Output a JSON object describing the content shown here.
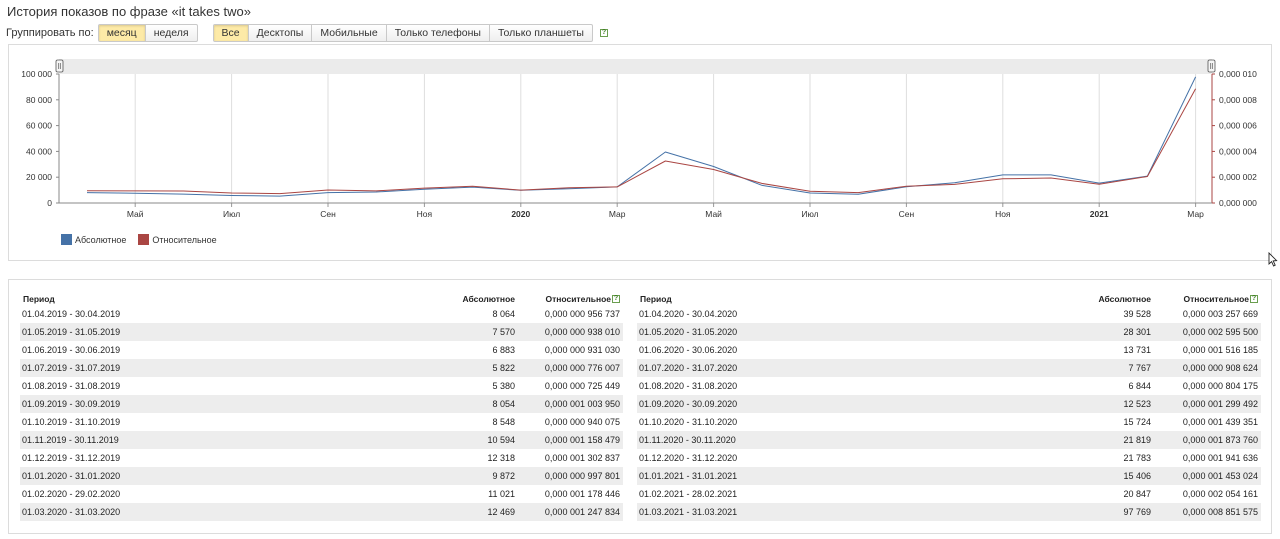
{
  "page": {
    "title": "История показов по фразе «it takes two»"
  },
  "controls": {
    "group_label": "Группировать по:",
    "group_options": [
      {
        "label": "месяц",
        "active": true
      },
      {
        "label": "неделя",
        "active": false
      }
    ],
    "device_options": [
      {
        "label": "Все",
        "active": true
      },
      {
        "label": "Десктопы",
        "active": false
      },
      {
        "label": "Мобильные",
        "active": false
      },
      {
        "label": "Только телефоны",
        "active": false
      },
      {
        "label": "Только планшеты",
        "active": false
      }
    ],
    "help_glyph": "?"
  },
  "chart_data": {
    "type": "line",
    "x": [
      "2019-04",
      "2019-05",
      "2019-06",
      "2019-07",
      "2019-08",
      "2019-09",
      "2019-10",
      "2019-11",
      "2019-12",
      "2020-01",
      "2020-02",
      "2020-03",
      "2020-04",
      "2020-05",
      "2020-06",
      "2020-07",
      "2020-08",
      "2020-09",
      "2020-10",
      "2020-11",
      "2020-12",
      "2021-01",
      "2021-02",
      "2021-03"
    ],
    "x_tick_labels": [
      "Май",
      "Июл",
      "Сен",
      "Ноя",
      "2020",
      "Мар",
      "Май",
      "Июл",
      "Сен",
      "Ноя",
      "2021",
      "Мар"
    ],
    "x_tick_bold": [
      false,
      false,
      false,
      false,
      true,
      false,
      false,
      false,
      false,
      false,
      true,
      false
    ],
    "y_left_ticks": [
      "0",
      "20 000",
      "40 000",
      "60 000",
      "80 000",
      "100 000"
    ],
    "y_right_ticks": [
      "0,000 000",
      "0,000 002",
      "0,000 004",
      "0,000 006",
      "0,000 008",
      "0,000 010"
    ],
    "y_left_range": [
      0,
      100000
    ],
    "y_right_range": [
      0,
      1e-05
    ],
    "series": [
      {
        "name": "Абсолютное",
        "color": "#4572a7",
        "axis": "left",
        "values": [
          8064,
          7570,
          6883,
          5822,
          5380,
          8054,
          8548,
          10594,
          12318,
          9872,
          11021,
          12469,
          39528,
          28301,
          13731,
          7767,
          6844,
          12523,
          15724,
          21819,
          21783,
          15406,
          20847,
          97769
        ]
      },
      {
        "name": "Относительное",
        "color": "#aa4643",
        "axis": "right",
        "values": [
          9.56737e-07,
          9.3801e-07,
          9.3103e-07,
          7.76007e-07,
          7.25449e-07,
          1.00395e-06,
          9.40075e-07,
          1.158479e-06,
          1.302837e-06,
          9.97801e-07,
          1.178446e-06,
          1.247834e-06,
          3.257669e-06,
          2.5955e-06,
          1.516185e-06,
          9.08624e-07,
          8.04175e-07,
          1.299492e-06,
          1.439351e-06,
          1.87376e-06,
          1.941636e-06,
          1.453024e-06,
          2.054161e-06,
          8.851575e-06
        ]
      }
    ],
    "grid": true,
    "legend_position": "bottom-left"
  },
  "table": {
    "headers": {
      "period": "Период",
      "absolute": "Абсолютное",
      "relative": "Относительное"
    },
    "left_rows": [
      {
        "period": "01.04.2019 - 30.04.2019",
        "absolute": "8 064",
        "relative": "0,000 000 956 737"
      },
      {
        "period": "01.05.2019 - 31.05.2019",
        "absolute": "7 570",
        "relative": "0,000 000 938 010"
      },
      {
        "period": "01.06.2019 - 30.06.2019",
        "absolute": "6 883",
        "relative": "0,000 000 931 030"
      },
      {
        "period": "01.07.2019 - 31.07.2019",
        "absolute": "5 822",
        "relative": "0,000 000 776 007"
      },
      {
        "period": "01.08.2019 - 31.08.2019",
        "absolute": "5 380",
        "relative": "0,000 000 725 449"
      },
      {
        "period": "01.09.2019 - 30.09.2019",
        "absolute": "8 054",
        "relative": "0,000 001 003 950"
      },
      {
        "period": "01.10.2019 - 31.10.2019",
        "absolute": "8 548",
        "relative": "0,000 000 940 075"
      },
      {
        "period": "01.11.2019 - 30.11.2019",
        "absolute": "10 594",
        "relative": "0,000 001 158 479"
      },
      {
        "period": "01.12.2019 - 31.12.2019",
        "absolute": "12 318",
        "relative": "0,000 001 302 837"
      },
      {
        "period": "01.01.2020 - 31.01.2020",
        "absolute": "9 872",
        "relative": "0,000 000 997 801"
      },
      {
        "period": "01.02.2020 - 29.02.2020",
        "absolute": "11 021",
        "relative": "0,000 001 178 446"
      },
      {
        "period": "01.03.2020 - 31.03.2020",
        "absolute": "12 469",
        "relative": "0,000 001 247 834"
      }
    ],
    "right_rows": [
      {
        "period": "01.04.2020 - 30.04.2020",
        "absolute": "39 528",
        "relative": "0,000 003 257 669"
      },
      {
        "period": "01.05.2020 - 31.05.2020",
        "absolute": "28 301",
        "relative": "0,000 002 595 500"
      },
      {
        "period": "01.06.2020 - 30.06.2020",
        "absolute": "13 731",
        "relative": "0,000 001 516 185"
      },
      {
        "period": "01.07.2020 - 31.07.2020",
        "absolute": "7 767",
        "relative": "0,000 000 908 624"
      },
      {
        "period": "01.08.2020 - 31.08.2020",
        "absolute": "6 844",
        "relative": "0,000 000 804 175"
      },
      {
        "period": "01.09.2020 - 30.09.2020",
        "absolute": "12 523",
        "relative": "0,000 001 299 492"
      },
      {
        "period": "01.10.2020 - 31.10.2020",
        "absolute": "15 724",
        "relative": "0,000 001 439 351"
      },
      {
        "period": "01.11.2020 - 30.11.2020",
        "absolute": "21 819",
        "relative": "0,000 001 873 760"
      },
      {
        "period": "01.12.2020 - 31.12.2020",
        "absolute": "21 783",
        "relative": "0,000 001 941 636"
      },
      {
        "period": "01.01.2021 - 31.01.2021",
        "absolute": "15 406",
        "relative": "0,000 001 453 024"
      },
      {
        "period": "01.02.2021 - 28.02.2021",
        "absolute": "20 847",
        "relative": "0,000 002 054 161"
      },
      {
        "period": "01.03.2021 - 31.03.2021",
        "absolute": "97 769",
        "relative": "0,000 008 851 575"
      }
    ]
  },
  "icons": {
    "range_handle": "range-handle-icon",
    "help": "help-icon",
    "cursor": "resize-cursor-icon"
  }
}
